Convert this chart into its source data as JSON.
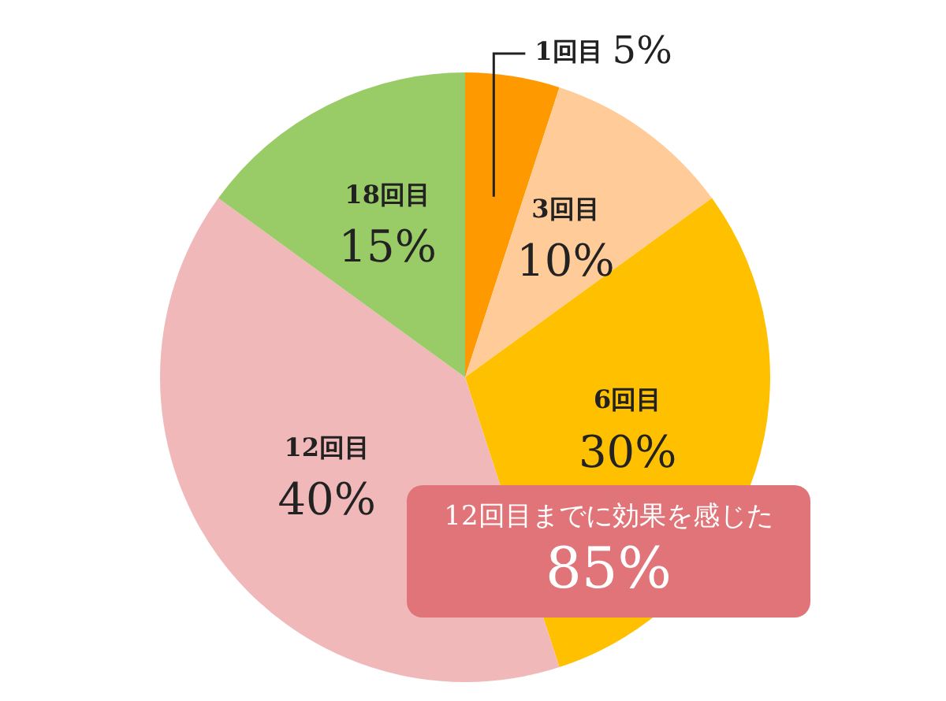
{
  "chart_data": {
    "type": "pie",
    "categories": [
      "1回目",
      "3回目",
      "6回目",
      "12回目",
      "18回目"
    ],
    "values": [
      5,
      10,
      30,
      40,
      15
    ],
    "value_labels": [
      "5%",
      "10%",
      "30%",
      "40%",
      "15%"
    ],
    "colors": [
      "#ff9900",
      "#ffcc99",
      "#ffc000",
      "#f0b8b8",
      "#99cc66"
    ],
    "annotations": [
      "12回目までに効果を感じた",
      "85%"
    ],
    "legend": false
  }
}
